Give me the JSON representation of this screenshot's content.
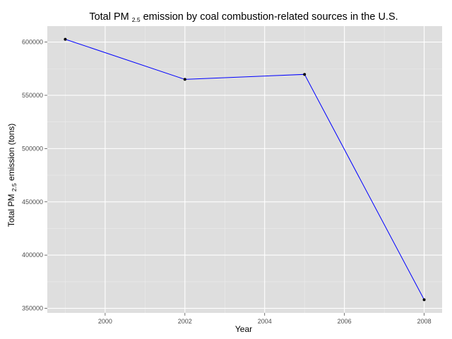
{
  "chart_data": {
    "type": "line",
    "title": {
      "before": "Total PM ",
      "sub": "2.5",
      "after": " emission by coal combustion-related sources in the U.S."
    },
    "xlabel": "Year",
    "ylabel": {
      "before": "Total PM ",
      "sub": "2.5",
      "after": " emission (tons)"
    },
    "x": [
      1999,
      2002,
      2005,
      2008
    ],
    "y": [
      602624,
      564940,
      569655,
      358084
    ],
    "xlim": [
      1998.55,
      2008.45
    ],
    "ylim": [
      345756,
      614952
    ],
    "xticks": [
      2000,
      2002,
      2004,
      2006,
      2008
    ],
    "yticks": [
      350000,
      400000,
      450000,
      500000,
      550000,
      600000
    ],
    "xtick_labels": [
      "2000",
      "2002",
      "2004",
      "2006",
      "2008"
    ],
    "ytick_labels": [
      "350000",
      "400000",
      "450000",
      "500000",
      "550000",
      "600000"
    ],
    "line_color": "#0000ff",
    "point_color": "#000000",
    "panel_background": "#dedede",
    "grid_color": "#ffffff",
    "grid": true,
    "legend": "none"
  }
}
